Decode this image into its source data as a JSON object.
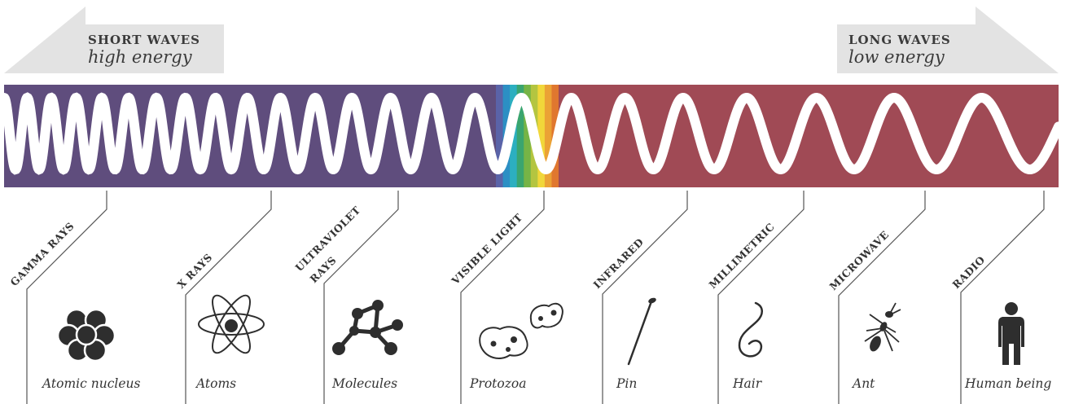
{
  "short_waves": {
    "title": "SHORT WAVES",
    "subtitle": "high energy"
  },
  "long_waves": {
    "title": "LONG WAVES",
    "subtitle": "low energy"
  },
  "colors": {
    "short_band": "#5f4d7d",
    "long_band": "#a04a55",
    "arrow_fill": "#e3e3e3",
    "ink": "#333333",
    "visible_spectrum": [
      "#5a63a8",
      "#2c8fc4",
      "#2cafc0",
      "#3aa56f",
      "#76b446",
      "#b4c540",
      "#f1d73a",
      "#eba235",
      "#e0772f"
    ]
  },
  "bands": [
    {
      "label": "GAMMA RAYS",
      "object": "Atomic nucleus",
      "icon": "atomic-nucleus-icon"
    },
    {
      "label": "X RAYS",
      "object": "Atoms",
      "icon": "atom-icon"
    },
    {
      "label": "ULTRAVIOLET",
      "label2": "RAYS",
      "object": "Molecules",
      "icon": "molecule-icon"
    },
    {
      "label": "VISIBLE LIGHT",
      "object": "Protozoa",
      "icon": "protozoa-icon"
    },
    {
      "label": "INFRARED",
      "object": "Pin",
      "icon": "pin-icon"
    },
    {
      "label": "MILLIMETRIC",
      "object": "Hair",
      "icon": "hair-icon"
    },
    {
      "label": "MICROWAVE",
      "object": "Ant",
      "icon": "ant-icon"
    },
    {
      "label": "RADIO",
      "object": "Human being",
      "icon": "human-icon"
    }
  ]
}
